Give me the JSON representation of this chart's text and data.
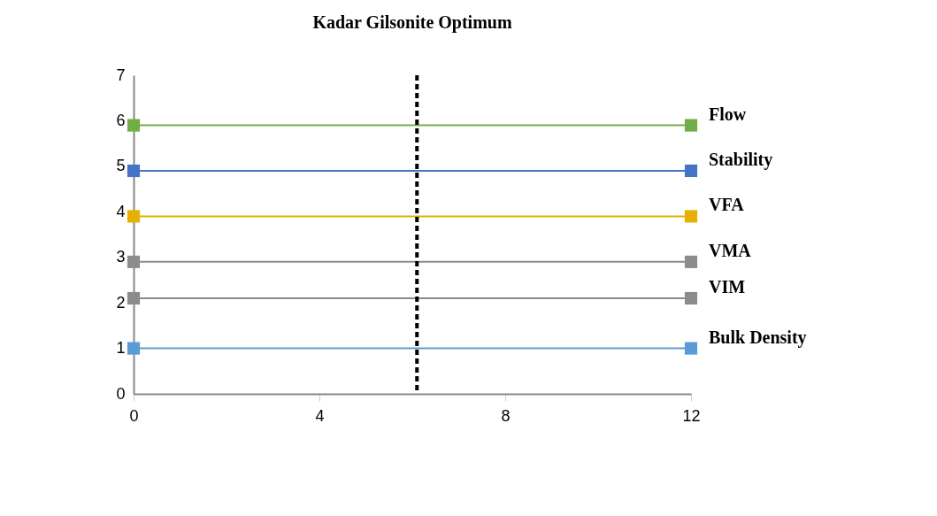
{
  "chart_data": {
    "type": "line",
    "title": "Kadar Gilsonite Optimum",
    "x": [
      0,
      12
    ],
    "series": [
      {
        "name": "Flow",
        "color": "#70ad47",
        "values": [
          5.9,
          5.9
        ]
      },
      {
        "name": "Stability",
        "color": "#4472c4",
        "values": [
          4.9,
          4.9
        ]
      },
      {
        "name": "VFA",
        "color": "#e6b000",
        "values": [
          3.9,
          3.9
        ]
      },
      {
        "name": "VMA",
        "color": "#8c8c8c",
        "values": [
          2.9,
          2.9
        ]
      },
      {
        "name": "VIM",
        "color": "#8c8c8c",
        "values": [
          2.1,
          2.1
        ]
      },
      {
        "name": "Bulk Density",
        "color": "#5b9bd5",
        "values": [
          1.0,
          1.0
        ]
      }
    ],
    "xlim": [
      0,
      12
    ],
    "xticks": [
      0,
      4,
      8,
      12
    ],
    "ylim": [
      0,
      7
    ],
    "yticks": [
      0,
      1,
      2,
      3,
      4,
      5,
      6,
      7
    ],
    "ref_lines": [
      {
        "axis": "x",
        "value": 6.1,
        "color": "#000000",
        "line_style": "dashed"
      }
    ],
    "marker": "square",
    "line_style": "solid",
    "legend": "right",
    "grid": false
  }
}
